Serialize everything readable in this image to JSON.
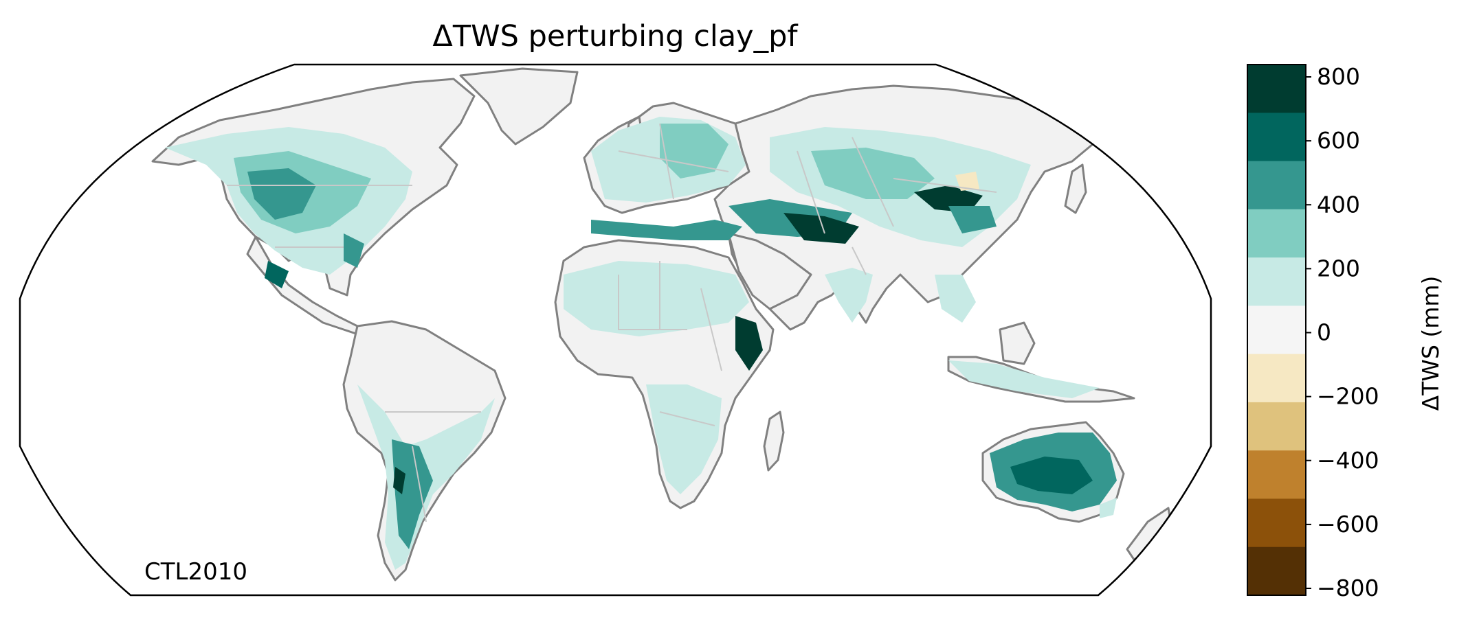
{
  "title": "ΔTWS perturbing clay_pf",
  "annotation": "CTL2010",
  "colorbar": {
    "label": "ΔTWS (mm)",
    "ticks": [
      "800",
      "600",
      "400",
      "200",
      "0",
      "−200",
      "−400",
      "−600",
      "−800"
    ],
    "range": [
      -800,
      800
    ],
    "colors": [
      "#003c30",
      "#01665e",
      "#35978f",
      "#80cdc1",
      "#c7eae5",
      "#f5f5f5",
      "#f6e8c3",
      "#dfc27d",
      "#bf812d",
      "#8c510a",
      "#543005"
    ]
  },
  "map": {
    "projection": "robinson",
    "land_color": "#f2f2f2",
    "coastline_color": "#808080",
    "border_color": "#c8c8c8"
  }
}
